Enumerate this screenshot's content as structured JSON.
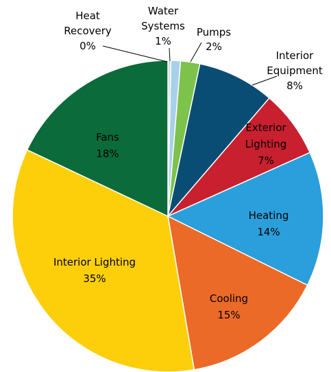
{
  "chart_data": {
    "type": "pie",
    "title": "",
    "start_angle_deg": 0,
    "direction": "clockwise",
    "slices": [
      {
        "name": "Heat Recovery",
        "lines": [
          "Heat",
          "Recovery"
        ],
        "percent_label": "0%",
        "value": 0.3,
        "color": "#d9d9d9",
        "label_outside": true,
        "label_color": "#000000"
      },
      {
        "name": "Water Systems",
        "lines": [
          "Water",
          "Systems"
        ],
        "percent_label": "1%",
        "value": 1.0,
        "color": "#a8d0ea",
        "label_outside": true,
        "label_color": "#000000"
      },
      {
        "name": "Pumps",
        "lines": [
          "Pumps"
        ],
        "percent_label": "2%",
        "value": 2.0,
        "color": "#7dc24b",
        "label_outside": true,
        "label_color": "#000000"
      },
      {
        "name": "Interior Equipment",
        "lines": [
          "Interior",
          "Equipment"
        ],
        "percent_label": "8%",
        "value": 8.0,
        "color": "#0a4d74",
        "label_outside": true,
        "label_color": "#000000"
      },
      {
        "name": "Exterior Lighting",
        "lines": [
          "Exterior",
          "Lighting"
        ],
        "percent_label": "7%",
        "value": 7.0,
        "color": "#c8202f",
        "label_outside": false,
        "label_color": "#000000"
      },
      {
        "name": "Heating",
        "lines": [
          "Heating"
        ],
        "percent_label": "14%",
        "value": 14.0,
        "color": "#2b9fdb",
        "label_outside": false,
        "label_color": "#000000"
      },
      {
        "name": "Cooling",
        "lines": [
          "Cooling"
        ],
        "percent_label": "15%",
        "value": 15.0,
        "color": "#eb6a28",
        "label_outside": false,
        "label_color": "#000000"
      },
      {
        "name": "Interior Lighting",
        "lines": [
          "Interior Lighting"
        ],
        "percent_label": "35%",
        "value": 34.7,
        "color": "#fccf0a",
        "label_outside": false,
        "label_color": "#000000"
      },
      {
        "name": "Fans",
        "lines": [
          "Fans"
        ],
        "percent_label": "18%",
        "value": 18.0,
        "color": "#0b6b3a",
        "label_outside": false,
        "label_color": "#000000"
      }
    ]
  }
}
